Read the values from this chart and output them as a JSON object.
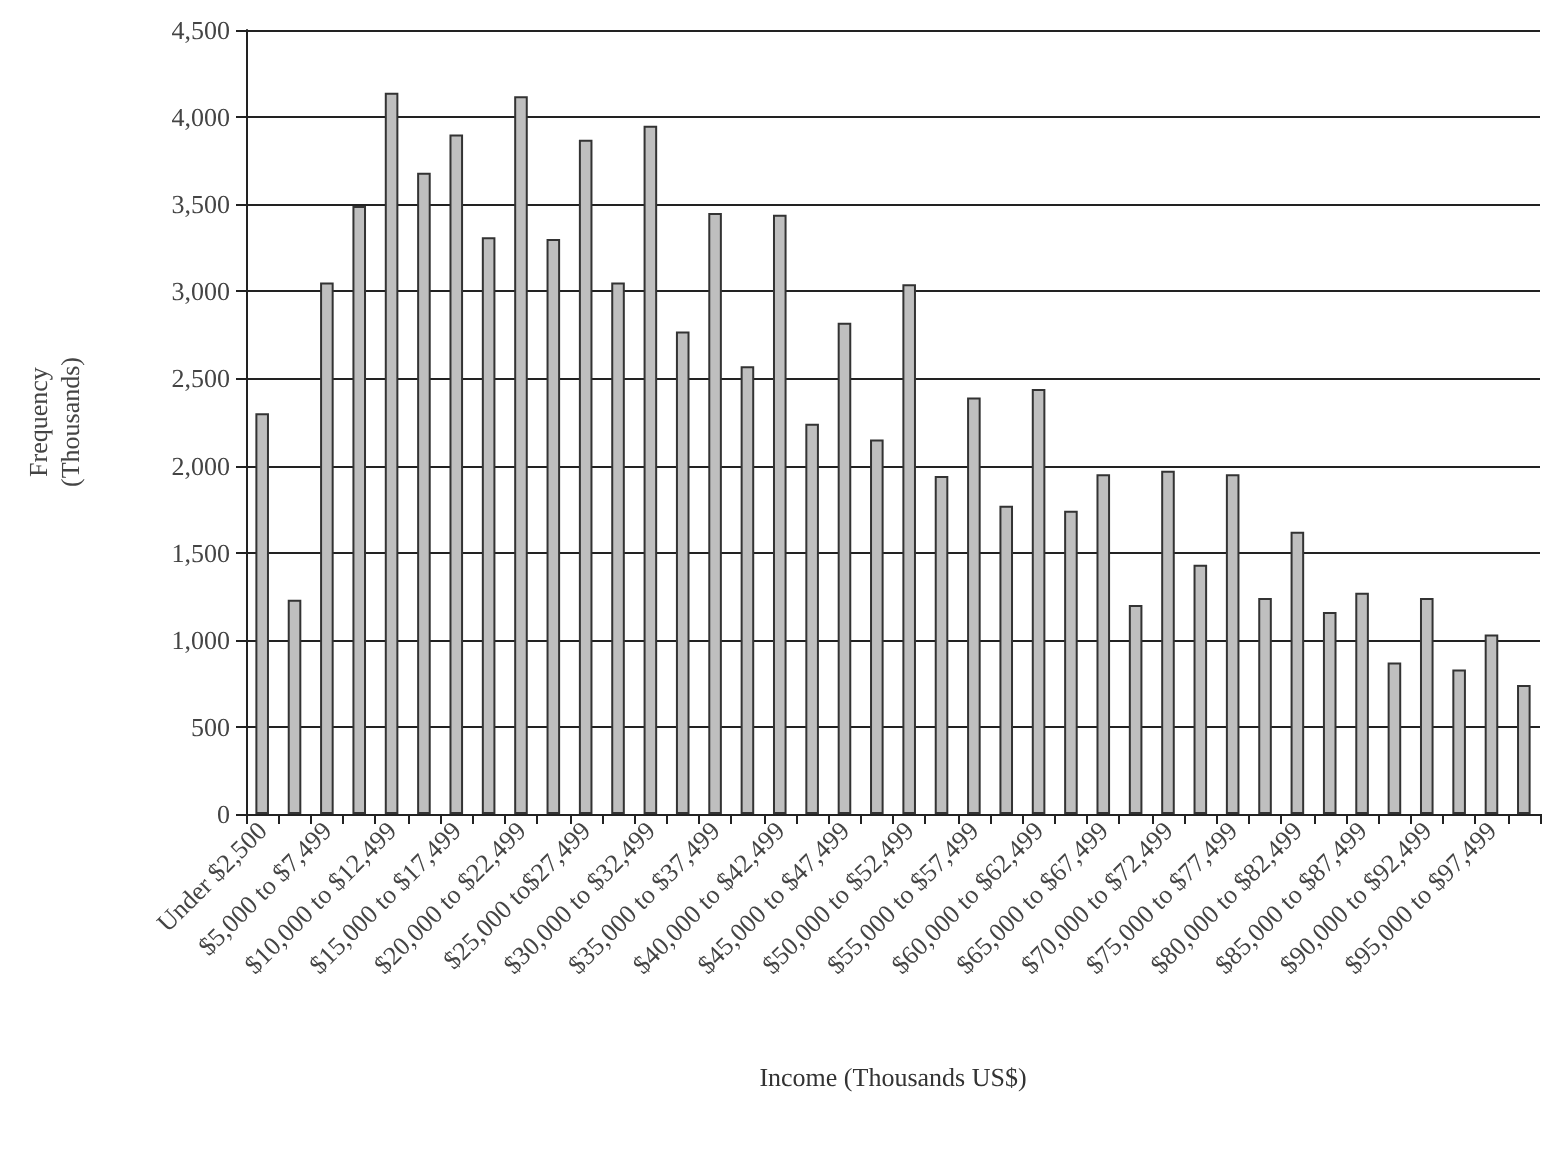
{
  "chart_data": {
    "type": "bar",
    "xlabel": "Income (Thousands US$)",
    "ylabel": "Frequency\n(Thousands)",
    "categories": [
      "Under $2,500",
      null,
      "$5,000 to $7,499",
      null,
      "$10,000 to $12,499",
      null,
      "$15,000 to $17,499",
      null,
      "$20,000 to $22,499",
      null,
      "$25,000 to$27,499",
      null,
      "$30,000 to $32,499",
      null,
      "$35,000 to $37,499",
      null,
      "$40,000 to $42,499",
      null,
      "$45,000 to $47,499",
      null,
      "$50,000 to $52,499",
      null,
      "$55,000 to $57,499",
      null,
      "$60,000 to $62,499",
      null,
      "$65,000 to $67,499",
      null,
      "$70,000 to $72,499",
      null,
      "$75,000 to $77,499",
      null,
      "$80,000 to $82,499",
      null,
      "$85,000 to $87,499",
      null,
      "$90,000 to $92,499",
      null,
      "$95,000 to $97,499",
      null
    ],
    "values": [
      2300,
      1230,
      3050,
      3490,
      4140,
      3680,
      3900,
      3310,
      4120,
      3300,
      3870,
      3050,
      3950,
      2770,
      3450,
      2570,
      3440,
      2240,
      2820,
      2150,
      3040,
      1940,
      2390,
      1770,
      2440,
      1740,
      1950,
      1200,
      1970,
      1430,
      1950,
      1240,
      1620,
      1160,
      1270,
      870,
      1240,
      830,
      1030,
      740
    ],
    "color": "#bfbfbf",
    "ylim": [
      0,
      4500
    ],
    "yticks": [
      0,
      500,
      {
        "value": 1000,
        "label": "1,000"
      },
      {
        "value": 1500,
        "label": "1,500"
      },
      {
        "value": 2000,
        "label": "2,000"
      },
      {
        "value": 2500,
        "label": "2,500"
      },
      {
        "value": 3000,
        "label": "3,000"
      },
      {
        "value": 3500,
        "label": "3,500"
      },
      {
        "value": 4000,
        "label": "4,000"
      },
      {
        "value": 4500,
        "label": "4,500"
      }
    ],
    "grid": "y"
  }
}
